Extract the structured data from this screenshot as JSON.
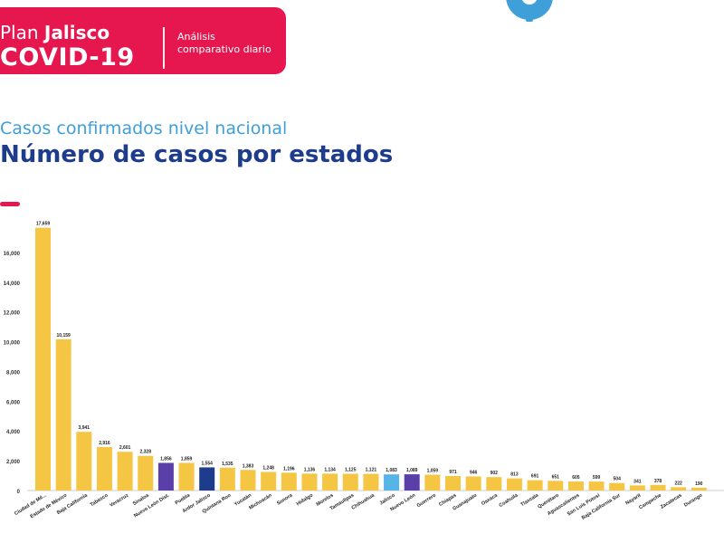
{
  "header": {
    "brand_plain": "Plan",
    "brand_bold": "Jalisco",
    "brand_line2": "COVID-19",
    "subtext": "Análisis comparativo diario"
  },
  "logo_icon": "gear-icon",
  "subtitle": "Casos confirmados nivel nacional",
  "title": "Número de casos por estados",
  "colors": {
    "banner": "#e6174f",
    "subtitle": "#3f9fd9",
    "title": "#1e3c8c",
    "bar_default": "#f5c544",
    "bar_purple": "#5a3fa8",
    "bar_navy": "#1e3c8c",
    "bar_lightblue": "#55b5e6"
  },
  "chart_data": {
    "type": "bar",
    "ylim": [
      0,
      18000
    ],
    "yticks": [
      0,
      2000,
      4000,
      6000,
      8000,
      10000,
      12000,
      14000,
      16000
    ],
    "ytick_labels": [
      "0",
      "2,000",
      "4,000",
      "6,000",
      "8,000",
      "10,000",
      "12,000",
      "14,000",
      "16,000"
    ],
    "grid": false,
    "categories": [
      "Ciudad de Mé...",
      "Estado de México",
      "Baja California",
      "Tabasco",
      "Veracruz",
      "Sinaloa",
      "Nuevo León Dist.",
      "Puebla",
      "Ardor Jalisco",
      "Quintana Roo",
      "Yucatán",
      "Michoacán",
      "Sonora",
      "Hidalgo",
      "Morelos",
      "Tamaulipas",
      "Chihuahua",
      "Jalisco",
      "Nuevo León",
      "Guerrero",
      "Chiapas",
      "Guanajuato",
      "Oaxaca",
      "Coahuila",
      "Tlaxcala",
      "Querétaro",
      "Aguascalientes",
      "San Luis Potosí",
      "Baja California Sur",
      "Nayarit",
      "Campeche",
      "Zacatecas",
      "Durango"
    ],
    "values": [
      17659,
      10159,
      3941,
      2916,
      2601,
      2328,
      1856,
      1859,
      1554,
      1535,
      1383,
      1248,
      1196,
      1136,
      1134,
      1125,
      1121,
      1083,
      1089,
      1059,
      971,
      946,
      902,
      813,
      691,
      651,
      605,
      599,
      504,
      341,
      378,
      222,
      190
    ],
    "value_labels": [
      "17,659",
      "10,159",
      "3,941",
      "2,916",
      "2,601",
      "2,328",
      "1,856",
      "1,859",
      "1,554",
      "1,535",
      "1,383",
      "1,248",
      "1,196",
      "1,136",
      "1,134",
      "1,125",
      "1,121",
      "1,083",
      "1,089",
      "1,059",
      "971",
      "946",
      "902",
      "813",
      "691",
      "651",
      "605",
      "599",
      "504",
      "341",
      "378",
      "222",
      "190"
    ],
    "highlight_colors": {
      "6": "#5a3fa8",
      "8": "#1e3c8c",
      "17": "#55b5e6",
      "18": "#5a3fa8"
    }
  }
}
